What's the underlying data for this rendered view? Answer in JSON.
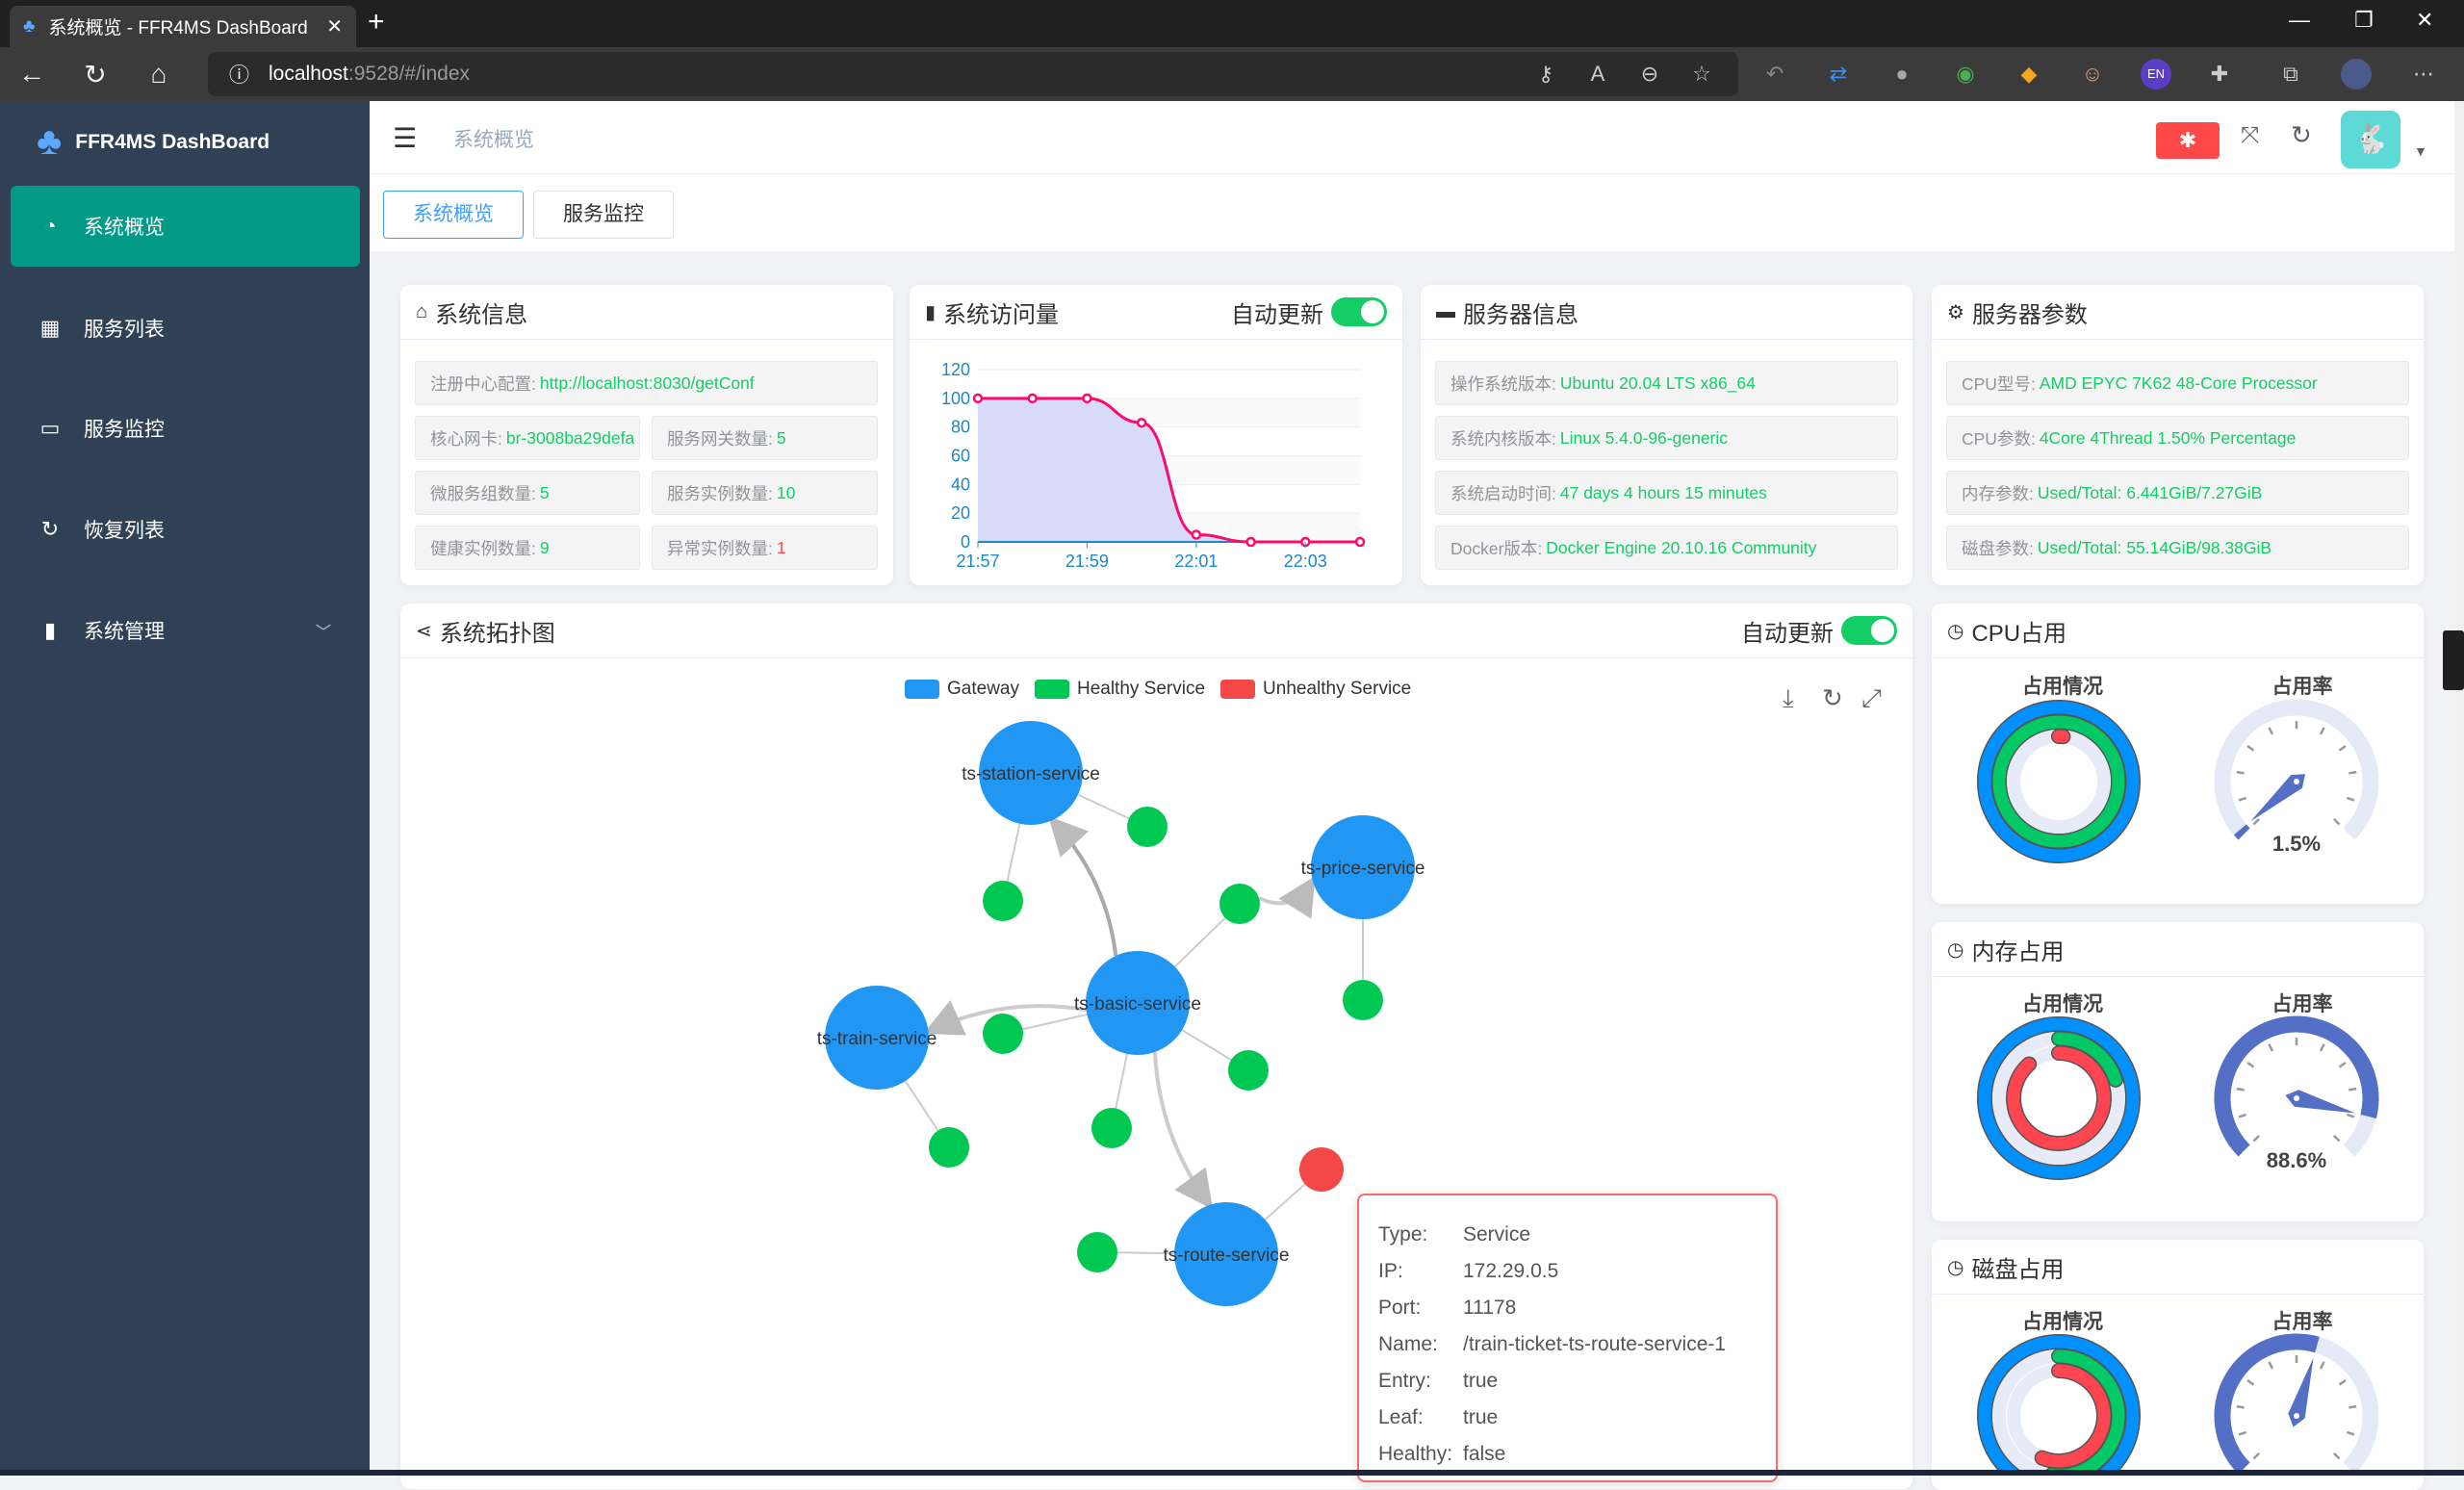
{
  "browser": {
    "tab_title": "系统概览 - FFR4MS DashBoard",
    "url_host": "localhost",
    "url_path": ":9528/#/index"
  },
  "sidebar": {
    "logo": "FFR4MS DashBoard",
    "items": [
      {
        "label": "系统概览",
        "icon": "dashboard-icon",
        "active": true
      },
      {
        "label": "服务列表",
        "icon": "grid-icon"
      },
      {
        "label": "服务监控",
        "icon": "monitor-icon"
      },
      {
        "label": "恢复列表",
        "icon": "refresh-icon"
      },
      {
        "label": "系统管理",
        "icon": "chart-icon",
        "has_submenu": true
      }
    ]
  },
  "header": {
    "breadcrumb": "系统概览"
  },
  "tags": [
    {
      "label": "系统概览",
      "active": true
    },
    {
      "label": "服务监控"
    }
  ],
  "system_info": {
    "title": "系统信息",
    "rows": [
      {
        "label": "注册中心配置:",
        "value": "http://localhost:8030/getConf"
      },
      {
        "label": "核心网卡:",
        "value": "br-3008ba29defa"
      },
      {
        "label": "服务网关数量:",
        "value": "5"
      },
      {
        "label": "微服务组数量:",
        "value": "5"
      },
      {
        "label": "服务实例数量:",
        "value": "10"
      },
      {
        "label": "健康实例数量:",
        "value": "9"
      },
      {
        "label": "异常实例数量:",
        "value": "1",
        "status": "error"
      }
    ]
  },
  "traffic": {
    "title": "系统访问量",
    "auto_update_label": "自动更新",
    "auto_update": true
  },
  "server_info": {
    "title": "服务器信息",
    "rows": [
      {
        "label": "操作系统版本:",
        "value": "Ubuntu 20.04 LTS x86_64"
      },
      {
        "label": "系统内核版本:",
        "value": "Linux 5.4.0-96-generic"
      },
      {
        "label": "系统启动时间:",
        "value": "47 days 4 hours 15 minutes"
      },
      {
        "label": "Docker版本:",
        "value": "Docker Engine 20.10.16 Community"
      }
    ]
  },
  "server_params": {
    "title": "服务器参数",
    "rows": [
      {
        "label": "CPU型号:",
        "value": "AMD EPYC 7K62 48-Core Processor"
      },
      {
        "label": "CPU参数:",
        "value": "4Core 4Thread 1.50% Percentage"
      },
      {
        "label": "内存参数:",
        "value": "Used/Total: 6.441GiB/7.27GiB"
      },
      {
        "label": "磁盘参数:",
        "value": "Used/Total: 55.14GiB/98.38GiB"
      }
    ]
  },
  "topology": {
    "title": "系统拓扑图",
    "auto_update_label": "自动更新",
    "auto_update": true,
    "legend": [
      {
        "name": "Gateway",
        "color": "#2196f3"
      },
      {
        "name": "Healthy Service",
        "color": "#00c853"
      },
      {
        "name": "Unhealthy Service",
        "color": "#f44848"
      }
    ],
    "gateways": [
      "ts-station-service",
      "ts-price-service",
      "ts-basic-service",
      "ts-train-service",
      "ts-route-service"
    ],
    "tooltip": [
      {
        "k": "Type:",
        "v": "Service"
      },
      {
        "k": "IP:",
        "v": "172.29.0.5"
      },
      {
        "k": "Port:",
        "v": "11178"
      },
      {
        "k": "Name:",
        "v": "/train-ticket-ts-route-service-1"
      },
      {
        "k": "Entry:",
        "v": "true"
      },
      {
        "k": "Leaf:",
        "v": "true"
      },
      {
        "k": "Healthy:",
        "v": "false"
      }
    ]
  },
  "usage": [
    {
      "title": "CPU占用",
      "left_title": "占用情况",
      "right_title": "占用率",
      "rings": [
        100,
        100,
        1.5
      ],
      "percent": 1.5,
      "label": "1.5%"
    },
    {
      "title": "内存占用",
      "left_title": "占用情况",
      "right_title": "占用率",
      "rings": [
        100,
        20,
        88.6
      ],
      "percent": 88.6,
      "label": "88.6%"
    },
    {
      "title": "磁盘占用",
      "left_title": "占用情况",
      "right_title": "占用率",
      "rings": [
        100,
        52,
        56
      ],
      "percent": 56,
      "label": ""
    }
  ],
  "colors": {
    "sidebar": "#304156",
    "active": "#009a87",
    "value": "#13ce66",
    "error": "#ff4949",
    "line": "#ff0a6c",
    "area": "#d4d7f7",
    "gauge": "#5470c6"
  },
  "chart_data": {
    "type": "area",
    "x": [
      "21:57",
      "21:58",
      "21:59",
      "22:00",
      "22:01",
      "22:02",
      "22:03",
      "22:04"
    ],
    "values": [
      100,
      100,
      100,
      83,
      5,
      0,
      0,
      0
    ],
    "xticks": [
      "21:57",
      "21:59",
      "22:01",
      "22:03"
    ],
    "yticks": [
      0,
      20,
      40,
      60,
      80,
      100,
      120
    ],
    "ylim": [
      0,
      120
    ],
    "grid": true
  }
}
